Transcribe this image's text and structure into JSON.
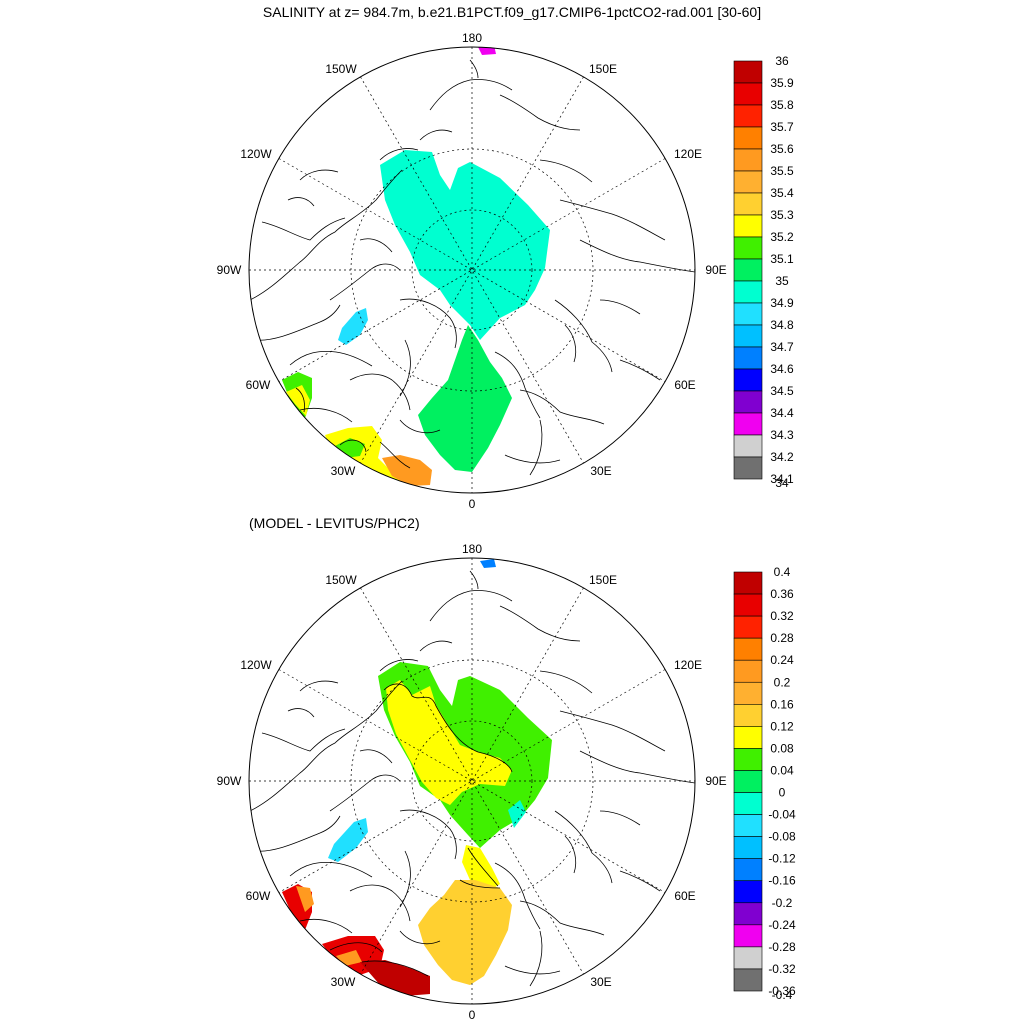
{
  "title": "SALINITY at z= 984.7m, b.e21.B1PCT.f09_g17.CMIP6-1pctCO2-rad.001 [30-60]",
  "subtitle": "(MODEL - LEVITUS/PHC2)",
  "longitude_labels": {
    "top": "180",
    "bottom": "0",
    "left": "90W",
    "right": "90E",
    "upper_left_outer": "150W",
    "upper_left_inner": "120W",
    "upper_right_outer": "150E",
    "upper_right_inner": "120E",
    "lower_left_inner": "60W",
    "lower_left_outer": "30W",
    "lower_right_inner": "60E",
    "lower_right_outer": "30E"
  },
  "colorbars": {
    "salinity": {
      "labels": [
        "36",
        "35.9",
        "35.8",
        "35.7",
        "35.6",
        "35.5",
        "35.4",
        "35.3",
        "35.2",
        "35.1",
        "35",
        "34.9",
        "34.8",
        "34.7",
        "34.6",
        "34.5",
        "34.4",
        "34.3",
        "34.2",
        "34.1",
        "34"
      ],
      "colors": [
        "#c00000",
        "#e80000",
        "#ff2200",
        "#ff8000",
        "#ff9a20",
        "#ffb030",
        "#ffd030",
        "#ffff00",
        "#40f000",
        "#00f060",
        "#00ffd0",
        "#20e0ff",
        "#00c0ff",
        "#0080ff",
        "#0000ff",
        "#8000d0",
        "#f000f0",
        "#d0d0d0",
        "#707070"
      ]
    },
    "difference": {
      "labels": [
        "0.4",
        "0.36",
        "0.32",
        "0.28",
        "0.24",
        "0.2",
        "0.16",
        "0.12",
        "0.08",
        "0.04",
        "0",
        "-0.04",
        "-0.08",
        "-0.12",
        "-0.16",
        "-0.2",
        "-0.24",
        "-0.28",
        "-0.32",
        "-0.36",
        "-0.4"
      ],
      "colors": [
        "#c00000",
        "#e80000",
        "#ff2200",
        "#ff8000",
        "#ff9a20",
        "#ffb030",
        "#ffd030",
        "#ffff00",
        "#40f000",
        "#00f060",
        "#00ffd0",
        "#20e0ff",
        "#00c0ff",
        "#0080ff",
        "#0000ff",
        "#8000d0",
        "#f000f0",
        "#d0d0d0",
        "#707070"
      ]
    }
  },
  "fields": {
    "salinity": {
      "central_arctic": "#00ffd0",
      "nordic_seas": "#00f060",
      "baffin_bay": "#20e0ff",
      "labrador_patch": "#40f000",
      "labrador_patch_yellow": "#ffff00",
      "atlantic_west": "#ffff00",
      "atlantic_green": "#40f000",
      "atlantic_orange": "#ff9a20",
      "bering_dot": "#f000f0"
    },
    "difference": {
      "central_green": "#40f000",
      "central_yellow": "#ffff00",
      "nordic_seas": "#ffd030",
      "fram_strait": "#ffff00",
      "baffin_bay": "#20e0ff",
      "labrador_patch": "#e80000",
      "labrador_orange": "#ff9a20",
      "atlantic_red": "#e80000",
      "atlantic_darkred": "#c00000",
      "atlantic_orange": "#ff9a20",
      "kara_cyan": "#00ffd0",
      "bering_dot": "#0080ff"
    }
  }
}
